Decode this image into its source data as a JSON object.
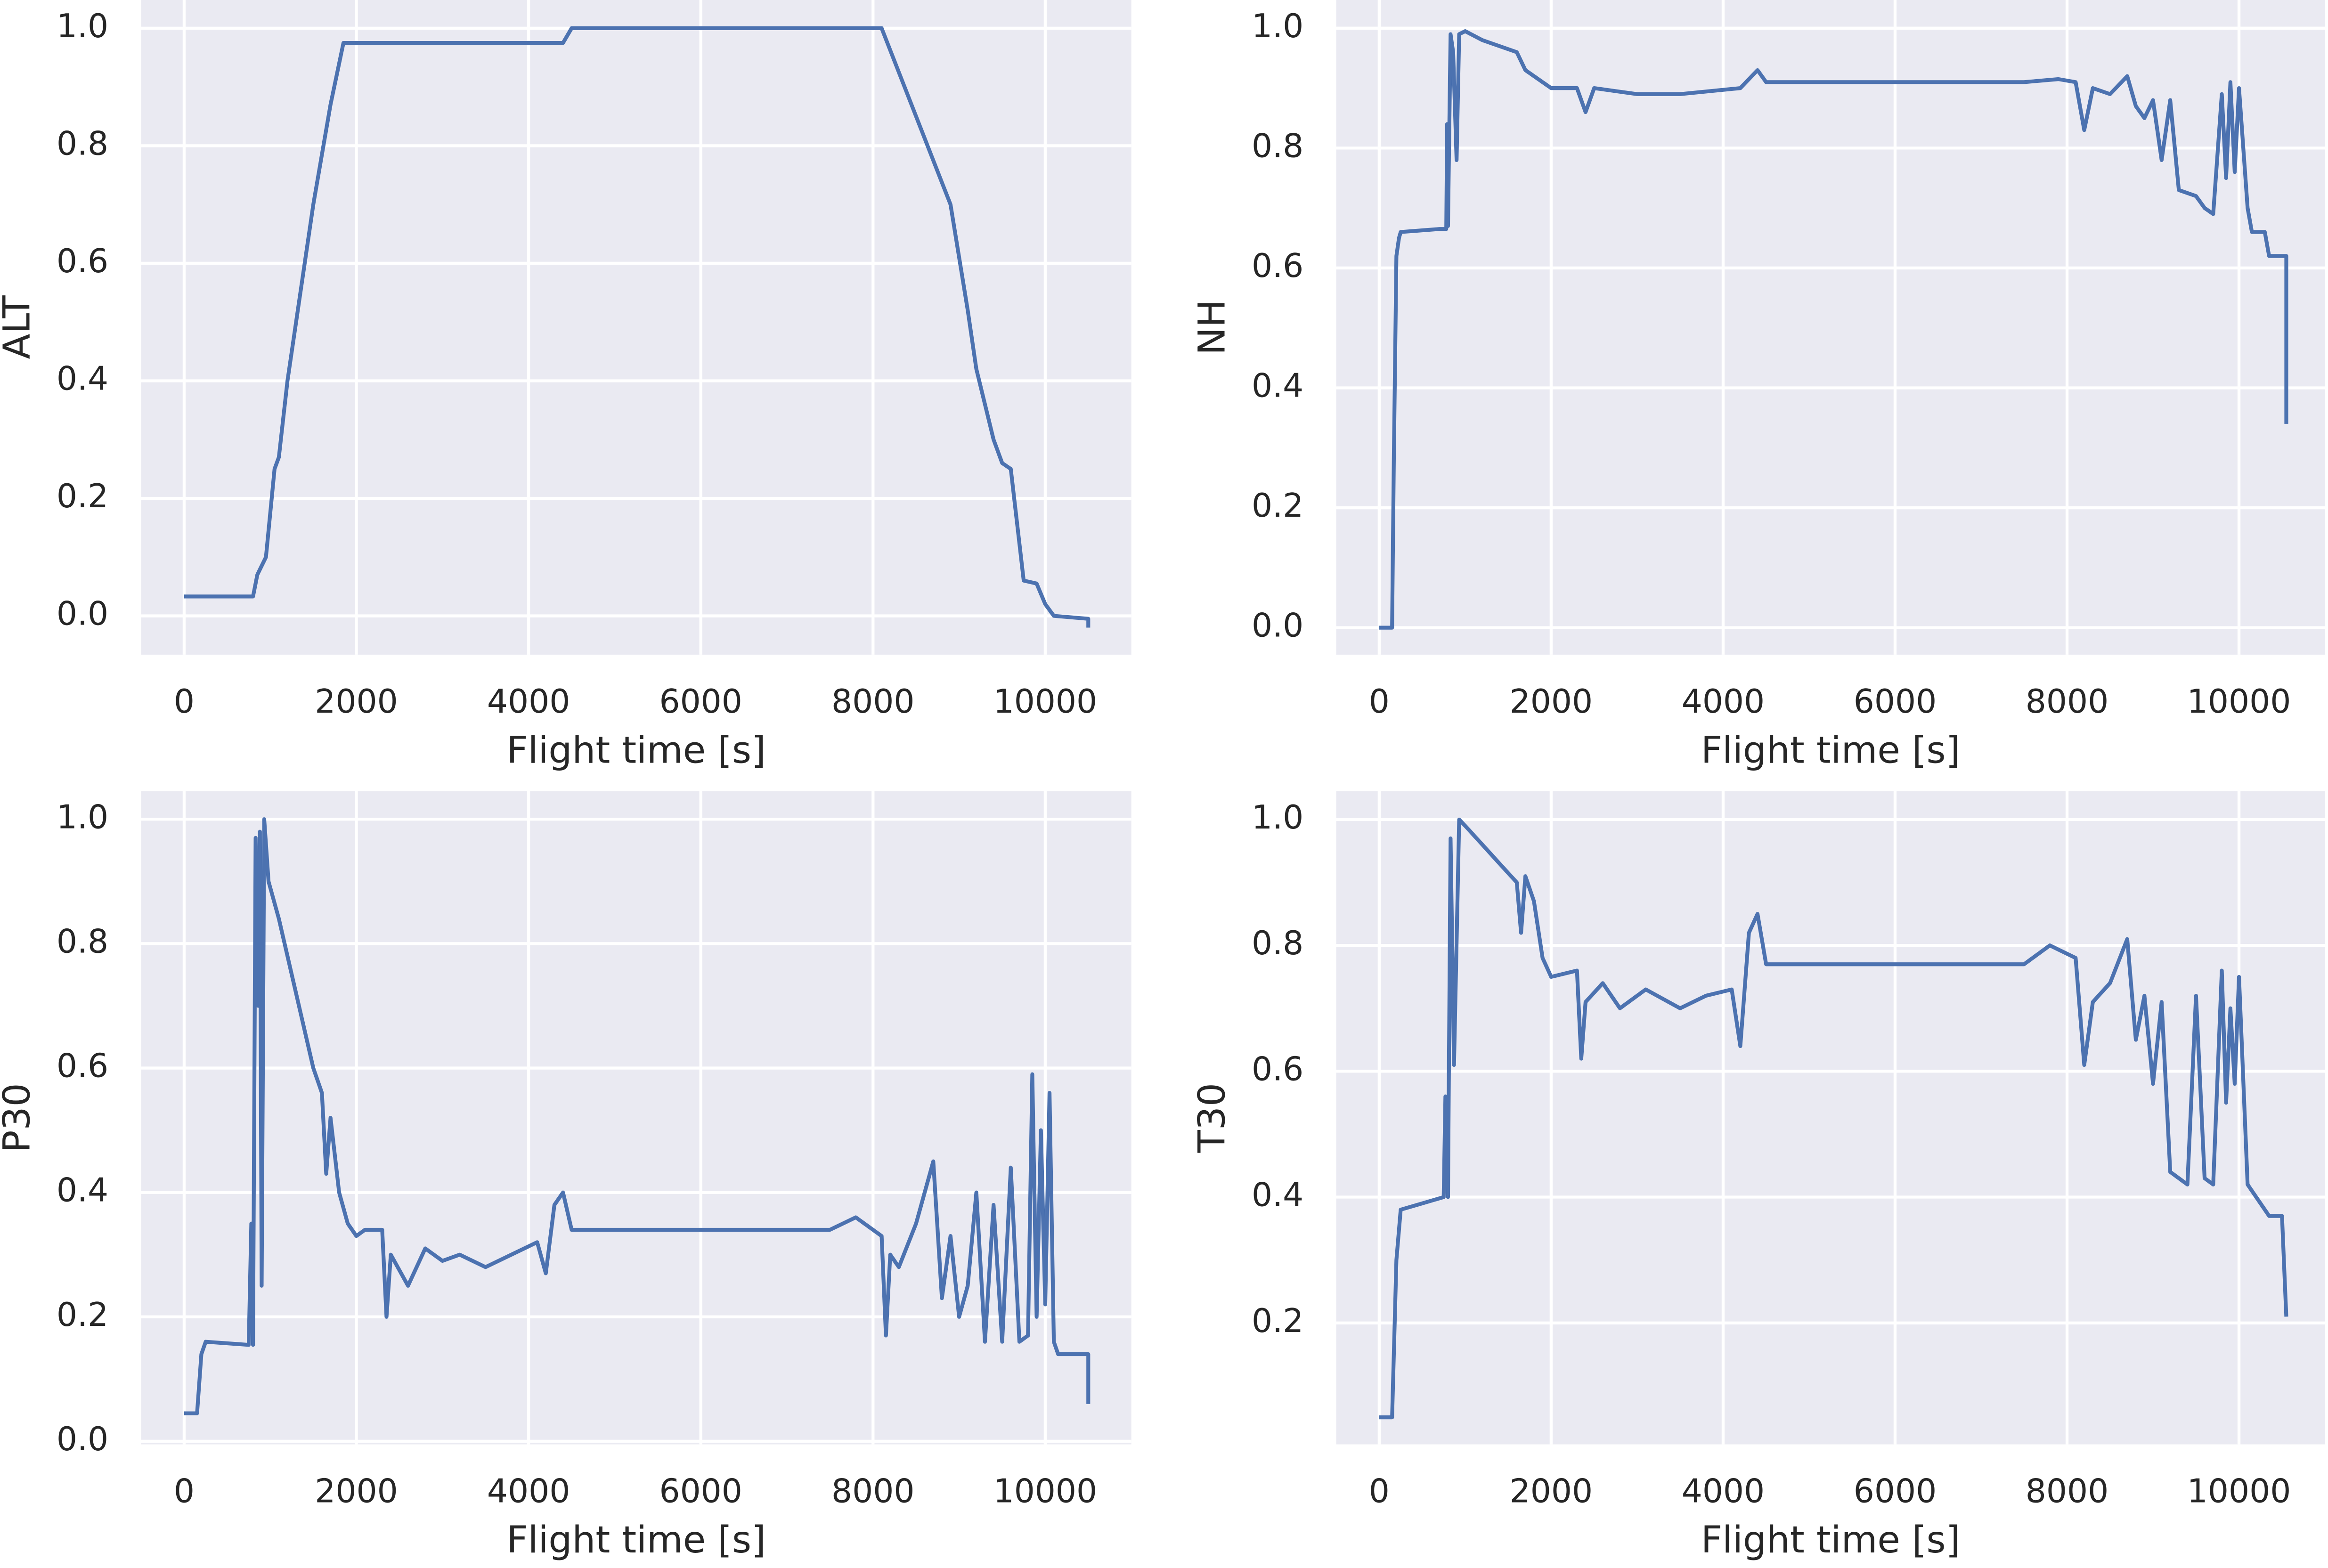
{
  "chart_data": [
    {
      "type": "line",
      "xlabel": "Flight time [s]",
      "ylabel": "ALT",
      "color": "#4c72b0",
      "grid": true,
      "xlim": [
        -500,
        11000
      ],
      "xticks": [
        0,
        2000,
        4000,
        6000,
        8000,
        10000
      ],
      "ylim": [
        -0.066,
        1.048
      ],
      "yticks": [
        {
          "value": 0,
          "label": "0.0"
        },
        0.2,
        0.4,
        0.6,
        0.8,
        {
          "value": 1,
          "label": "1.0"
        }
      ],
      "x": [
        0,
        800,
        850,
        950,
        1050,
        1100,
        1200,
        1300,
        1500,
        1700,
        1850,
        4400,
        4500,
        8100,
        8500,
        8900,
        9100,
        9200,
        9400,
        9500,
        9600,
        9750,
        9900,
        10000,
        10100,
        10500,
        10500
      ],
      "values": [
        0.033,
        0.033,
        0.07,
        0.1,
        0.25,
        0.27,
        0.4,
        0.5,
        0.7,
        0.87,
        0.975,
        0.975,
        1.0,
        1.0,
        0.85,
        0.7,
        0.52,
        0.42,
        0.3,
        0.26,
        0.25,
        0.06,
        0.055,
        0.02,
        0.0,
        -0.005,
        -0.02
      ]
    },
    {
      "type": "line",
      "xlabel": "Flight time [s]",
      "ylabel": "NH",
      "color": "#4c72b0",
      "grid": true,
      "xlim": [
        -500,
        11000
      ],
      "xticks": [
        0,
        2000,
        4000,
        6000,
        8000,
        10000
      ],
      "ylim": [
        -0.045,
        1.047
      ],
      "yticks": [
        {
          "value": 0,
          "label": "0.0"
        },
        0.2,
        0.4,
        0.6,
        0.8,
        {
          "value": 1,
          "label": "1.0"
        }
      ],
      "x": [
        0,
        150,
        170,
        200,
        230,
        250,
        700,
        780,
        790,
        800,
        830,
        860,
        900,
        930,
        1000,
        1200,
        1600,
        1700,
        1900,
        2000,
        2300,
        2400,
        2500,
        3000,
        3500,
        4200,
        4400,
        4500,
        5000,
        6000,
        7000,
        7500,
        7900,
        8100,
        8200,
        8300,
        8500,
        8700,
        8800,
        8900,
        9000,
        9100,
        9200,
        9300,
        9500,
        9600,
        9700,
        9800,
        9850,
        9900,
        9950,
        10000,
        10100,
        10150,
        10300,
        10350,
        10550,
        10550
      ],
      "values": [
        0,
        0,
        0.28,
        0.62,
        0.65,
        0.66,
        0.665,
        0.665,
        0.84,
        0.67,
        0.99,
        0.96,
        0.78,
        0.99,
        0.995,
        0.98,
        0.96,
        0.93,
        0.91,
        0.9,
        0.9,
        0.86,
        0.9,
        0.89,
        0.89,
        0.9,
        0.93,
        0.91,
        0.91,
        0.91,
        0.91,
        0.91,
        0.915,
        0.91,
        0.83,
        0.9,
        0.89,
        0.92,
        0.87,
        0.85,
        0.88,
        0.78,
        0.88,
        0.73,
        0.72,
        0.7,
        0.69,
        0.89,
        0.75,
        0.91,
        0.76,
        0.9,
        0.7,
        0.66,
        0.66,
        0.62,
        0.62,
        0.34
      ]
    },
    {
      "type": "line",
      "xlabel": "Flight time [s]",
      "ylabel": "P30",
      "color": "#4c72b0",
      "grid": true,
      "xlim": [
        -500,
        11000
      ],
      "xticks": [
        0,
        2000,
        4000,
        6000,
        8000,
        10000
      ],
      "ylim": [
        -0.005,
        1.045
      ],
      "yticks": [
        {
          "value": 0,
          "label": "0.0"
        },
        0.2,
        0.4,
        0.6,
        0.8,
        {
          "value": 1,
          "label": "1.0"
        }
      ],
      "x": [
        0,
        150,
        200,
        250,
        750,
        780,
        800,
        830,
        860,
        880,
        900,
        930,
        980,
        1100,
        1300,
        1500,
        1600,
        1650,
        1700,
        1800,
        1900,
        2000,
        2100,
        2300,
        2350,
        2400,
        2600,
        2800,
        3000,
        3200,
        3500,
        3800,
        4100,
        4200,
        4300,
        4400,
        4500,
        5000,
        6000,
        7000,
        7500,
        7800,
        8100,
        8150,
        8200,
        8300,
        8500,
        8700,
        8800,
        8900,
        9000,
        9100,
        9200,
        9300,
        9400,
        9500,
        9600,
        9700,
        9800,
        9850,
        9900,
        9950,
        10000,
        10050,
        10100,
        10150,
        10500,
        10500
      ],
      "values": [
        0.045,
        0.045,
        0.14,
        0.16,
        0.155,
        0.35,
        0.155,
        0.97,
        0.7,
        0.98,
        0.25,
        1.0,
        0.9,
        0.84,
        0.72,
        0.6,
        0.56,
        0.43,
        0.52,
        0.4,
        0.35,
        0.33,
        0.34,
        0.34,
        0.2,
        0.3,
        0.25,
        0.31,
        0.29,
        0.3,
        0.28,
        0.3,
        0.32,
        0.27,
        0.38,
        0.4,
        0.34,
        0.34,
        0.34,
        0.34,
        0.34,
        0.36,
        0.33,
        0.17,
        0.3,
        0.28,
        0.35,
        0.45,
        0.23,
        0.33,
        0.2,
        0.25,
        0.4,
        0.16,
        0.38,
        0.16,
        0.44,
        0.16,
        0.17,
        0.59,
        0.2,
        0.5,
        0.22,
        0.56,
        0.16,
        0.14,
        0.14,
        0.06
      ]
    },
    {
      "type": "line",
      "xlabel": "Flight time [s]",
      "ylabel": "T30",
      "color": "#4c72b0",
      "grid": true,
      "xlim": [
        -500,
        11000
      ],
      "xticks": [
        0,
        2000,
        4000,
        6000,
        8000,
        10000
      ],
      "ylim": [
        0.007,
        1.045
      ],
      "yticks": [
        0.2,
        0.4,
        0.6,
        0.8,
        {
          "value": 1,
          "label": "1.0"
        }
      ],
      "x": [
        0,
        150,
        200,
        250,
        500,
        750,
        770,
        800,
        830,
        870,
        930,
        1000,
        1200,
        1400,
        1600,
        1650,
        1700,
        1800,
        1900,
        2000,
        2300,
        2350,
        2400,
        2600,
        2800,
        3100,
        3500,
        3800,
        4100,
        4200,
        4300,
        4400,
        4500,
        5000,
        6000,
        7000,
        7500,
        7800,
        8100,
        8200,
        8300,
        8500,
        8700,
        8800,
        8900,
        9000,
        9100,
        9200,
        9400,
        9500,
        9600,
        9700,
        9800,
        9850,
        9900,
        9950,
        10000,
        10100,
        10150,
        10350,
        10500,
        10550
      ],
      "values": [
        0.05,
        0.05,
        0.3,
        0.38,
        0.39,
        0.4,
        0.56,
        0.4,
        0.97,
        0.61,
        1.0,
        0.99,
        0.96,
        0.93,
        0.9,
        0.82,
        0.91,
        0.87,
        0.78,
        0.75,
        0.76,
        0.62,
        0.71,
        0.74,
        0.7,
        0.73,
        0.7,
        0.72,
        0.73,
        0.64,
        0.82,
        0.85,
        0.77,
        0.77,
        0.77,
        0.77,
        0.77,
        0.8,
        0.78,
        0.61,
        0.71,
        0.74,
        0.81,
        0.65,
        0.72,
        0.58,
        0.71,
        0.44,
        0.42,
        0.72,
        0.43,
        0.42,
        0.76,
        0.55,
        0.7,
        0.58,
        0.75,
        0.42,
        0.41,
        0.37,
        0.37,
        0.21
      ]
    }
  ]
}
